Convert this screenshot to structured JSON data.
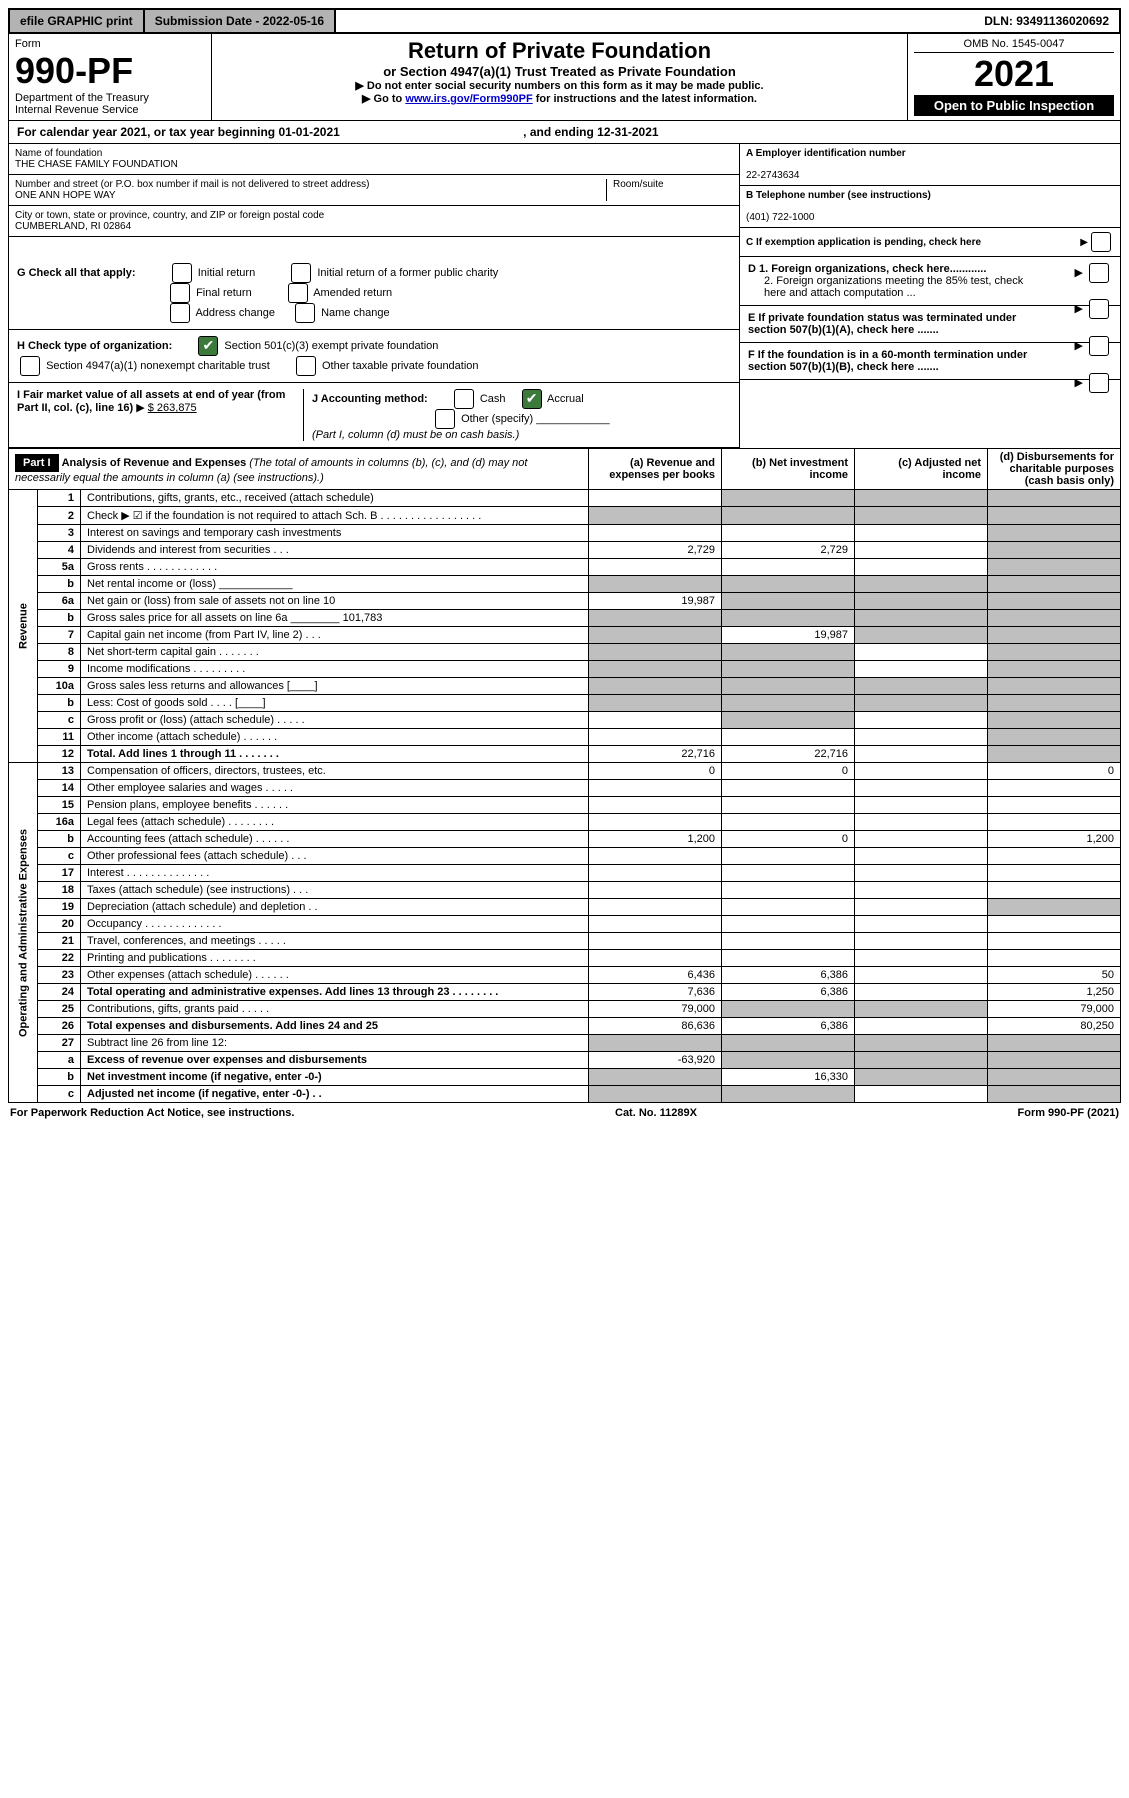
{
  "topbar": {
    "efile": "efile GRAPHIC print",
    "submission_label": "Submission Date - 2022-05-16",
    "dln": "DLN: 93491136020692"
  },
  "header": {
    "form_word": "Form",
    "form_no": "990-PF",
    "dept": "Department of the Treasury",
    "irs": "Internal Revenue Service",
    "title": "Return of Private Foundation",
    "subtitle": "or Section 4947(a)(1) Trust Treated as Private Foundation",
    "note1": "Do not enter social security numbers on this form as it may be made public.",
    "note2_pre": "Go to ",
    "note2_link": "www.irs.gov/Form990PF",
    "note2_post": " for instructions and the latest information.",
    "omb": "OMB No. 1545-0047",
    "year": "2021",
    "open": "Open to Public Inspection"
  },
  "cal": {
    "text": "For calendar year 2021, or tax year beginning 01-01-2021",
    "ending": ", and ending 12-31-2021"
  },
  "id": {
    "name_label": "Name of foundation",
    "name": "THE CHASE FAMILY FOUNDATION",
    "a_label": "A Employer identification number",
    "ein": "22-2743634",
    "addr_label": "Number and street (or P.O. box number if mail is not delivered to street address)",
    "room_label": "Room/suite",
    "addr": "ONE ANN HOPE WAY",
    "b_label": "B Telephone number (see instructions)",
    "phone": "(401) 722-1000",
    "city_label": "City or town, state or province, country, and ZIP or foreign postal code",
    "city": "CUMBERLAND, RI  02864",
    "c_label": "C If exemption application is pending, check here"
  },
  "boxes": {
    "g_label": "G Check all that apply:",
    "g_items": [
      "Initial return",
      "Initial return of a former public charity",
      "Final return",
      "Amended return",
      "Address change",
      "Name change"
    ],
    "h_label": "H Check type of organization:",
    "h1": "Section 501(c)(3) exempt private foundation",
    "h2": "Section 4947(a)(1) nonexempt charitable trust",
    "h3": "Other taxable private foundation",
    "i_label": "I Fair market value of all assets at end of year (from Part II, col. (c), line 16)",
    "i_value": "$  263,875",
    "j_label": "J Accounting method:",
    "j_cash": "Cash",
    "j_accrual": "Accrual",
    "j_other": "Other (specify)",
    "j_note": "(Part I, column (d) must be on cash basis.)",
    "d1": "D 1. Foreign organizations, check here............",
    "d2": "2. Foreign organizations meeting the 85% test, check here and attach computation ...",
    "e": "E  If private foundation status was terminated under section 507(b)(1)(A), check here .......",
    "f": "F  If the foundation is in a 60-month termination under section 507(b)(1)(B), check here ......."
  },
  "part1": {
    "label": "Part I",
    "title": "Analysis of Revenue and Expenses",
    "title_note": " (The total of amounts in columns (b), (c), and (d) may not necessarily equal the amounts in column (a) (see instructions).)",
    "cols": {
      "a": "(a) Revenue and expenses per books",
      "b": "(b) Net investment income",
      "c": "(c) Adjusted net income",
      "d": "(d) Disbursements for charitable purposes (cash basis only)"
    }
  },
  "sections": {
    "revenue": "Revenue",
    "operating": "Operating and Administrative Expenses"
  },
  "rows": [
    {
      "n": "1",
      "d": "Contributions, gifts, grants, etc., received (attach schedule)",
      "a": "",
      "b": "",
      "c": "",
      "dd": "",
      "ash": false,
      "bsh": true,
      "csh": true,
      "dsh": true
    },
    {
      "n": "2",
      "d": "Check ▶ ☑ if the foundation is not required to attach Sch. B   . . . . . . . . . . . . . . . . .",
      "a": "",
      "b": "",
      "c": "",
      "dd": "",
      "ash": true,
      "bsh": true,
      "csh": true,
      "dsh": true
    },
    {
      "n": "3",
      "d": "Interest on savings and temporary cash investments",
      "a": "",
      "b": "",
      "c": "",
      "dd": "",
      "ash": false,
      "bsh": false,
      "csh": false,
      "dsh": true
    },
    {
      "n": "4",
      "d": "Dividends and interest from securities   . . .",
      "a": "2,729",
      "b": "2,729",
      "c": "",
      "dd": "",
      "ash": false,
      "bsh": false,
      "csh": false,
      "dsh": true
    },
    {
      "n": "5a",
      "d": "Gross rents   . . . . . . . . . . . .",
      "a": "",
      "b": "",
      "c": "",
      "dd": "",
      "ash": false,
      "bsh": false,
      "csh": false,
      "dsh": true
    },
    {
      "n": "b",
      "d": "Net rental income or (loss)  ____________",
      "a": "",
      "b": "",
      "c": "",
      "dd": "",
      "ash": true,
      "bsh": true,
      "csh": true,
      "dsh": true
    },
    {
      "n": "6a",
      "d": "Net gain or (loss) from sale of assets not on line 10",
      "a": "19,987",
      "b": "",
      "c": "",
      "dd": "",
      "ash": false,
      "bsh": true,
      "csh": true,
      "dsh": true
    },
    {
      "n": "b",
      "d": "Gross sales price for all assets on line 6a ________ 101,783",
      "a": "",
      "b": "",
      "c": "",
      "dd": "",
      "ash": true,
      "bsh": true,
      "csh": true,
      "dsh": true
    },
    {
      "n": "7",
      "d": "Capital gain net income (from Part IV, line 2)   . . .",
      "a": "",
      "b": "19,987",
      "c": "",
      "dd": "",
      "ash": true,
      "bsh": false,
      "csh": true,
      "dsh": true
    },
    {
      "n": "8",
      "d": "Net short-term capital gain   . . . . . . .",
      "a": "",
      "b": "",
      "c": "",
      "dd": "",
      "ash": true,
      "bsh": true,
      "csh": false,
      "dsh": true
    },
    {
      "n": "9",
      "d": "Income modifications   . . . . . . . . .",
      "a": "",
      "b": "",
      "c": "",
      "dd": "",
      "ash": true,
      "bsh": true,
      "csh": false,
      "dsh": true
    },
    {
      "n": "10a",
      "d": "Gross sales less returns and allowances  [____]",
      "a": "",
      "b": "",
      "c": "",
      "dd": "",
      "ash": true,
      "bsh": true,
      "csh": true,
      "dsh": true
    },
    {
      "n": "b",
      "d": "Less: Cost of goods sold   . . . .  [____]",
      "a": "",
      "b": "",
      "c": "",
      "dd": "",
      "ash": true,
      "bsh": true,
      "csh": true,
      "dsh": true
    },
    {
      "n": "c",
      "d": "Gross profit or (loss) (attach schedule)   . . . . .",
      "a": "",
      "b": "",
      "c": "",
      "dd": "",
      "ash": false,
      "bsh": true,
      "csh": false,
      "dsh": true
    },
    {
      "n": "11",
      "d": "Other income (attach schedule)   . . . . . .",
      "a": "",
      "b": "",
      "c": "",
      "dd": "",
      "ash": false,
      "bsh": false,
      "csh": false,
      "dsh": true
    },
    {
      "n": "12",
      "d": "Total. Add lines 1 through 11   . . . . . . .",
      "a": "22,716",
      "b": "22,716",
      "c": "",
      "dd": "",
      "ash": false,
      "bsh": false,
      "csh": false,
      "dsh": true,
      "bold": true
    },
    {
      "n": "13",
      "d": "Compensation of officers, directors, trustees, etc.",
      "a": "0",
      "b": "0",
      "c": "",
      "dd": "0",
      "ash": false,
      "bsh": false,
      "csh": false,
      "dsh": false
    },
    {
      "n": "14",
      "d": "Other employee salaries and wages   . . . . .",
      "a": "",
      "b": "",
      "c": "",
      "dd": "",
      "ash": false,
      "bsh": false,
      "csh": false,
      "dsh": false
    },
    {
      "n": "15",
      "d": "Pension plans, employee benefits   . . . . . .",
      "a": "",
      "b": "",
      "c": "",
      "dd": "",
      "ash": false,
      "bsh": false,
      "csh": false,
      "dsh": false
    },
    {
      "n": "16a",
      "d": "Legal fees (attach schedule)   . . . . . . . .",
      "a": "",
      "b": "",
      "c": "",
      "dd": "",
      "ash": false,
      "bsh": false,
      "csh": false,
      "dsh": false
    },
    {
      "n": "b",
      "d": "Accounting fees (attach schedule)   . . . . . .",
      "a": "1,200",
      "b": "0",
      "c": "",
      "dd": "1,200",
      "ash": false,
      "bsh": false,
      "csh": false,
      "dsh": false
    },
    {
      "n": "c",
      "d": "Other professional fees (attach schedule)   . . .",
      "a": "",
      "b": "",
      "c": "",
      "dd": "",
      "ash": false,
      "bsh": false,
      "csh": false,
      "dsh": false
    },
    {
      "n": "17",
      "d": "Interest   . . . . . . . . . . . . . .",
      "a": "",
      "b": "",
      "c": "",
      "dd": "",
      "ash": false,
      "bsh": false,
      "csh": false,
      "dsh": false
    },
    {
      "n": "18",
      "d": "Taxes (attach schedule) (see instructions)   . . .",
      "a": "",
      "b": "",
      "c": "",
      "dd": "",
      "ash": false,
      "bsh": false,
      "csh": false,
      "dsh": false
    },
    {
      "n": "19",
      "d": "Depreciation (attach schedule) and depletion   . .",
      "a": "",
      "b": "",
      "c": "",
      "dd": "",
      "ash": false,
      "bsh": false,
      "csh": false,
      "dsh": true
    },
    {
      "n": "20",
      "d": "Occupancy   . . . . . . . . . . . . .",
      "a": "",
      "b": "",
      "c": "",
      "dd": "",
      "ash": false,
      "bsh": false,
      "csh": false,
      "dsh": false
    },
    {
      "n": "21",
      "d": "Travel, conferences, and meetings   . . . . .",
      "a": "",
      "b": "",
      "c": "",
      "dd": "",
      "ash": false,
      "bsh": false,
      "csh": false,
      "dsh": false
    },
    {
      "n": "22",
      "d": "Printing and publications   . . . . . . . .",
      "a": "",
      "b": "",
      "c": "",
      "dd": "",
      "ash": false,
      "bsh": false,
      "csh": false,
      "dsh": false
    },
    {
      "n": "23",
      "d": "Other expenses (attach schedule)   . . . . . .",
      "a": "6,436",
      "b": "6,386",
      "c": "",
      "dd": "50",
      "ash": false,
      "bsh": false,
      "csh": false,
      "dsh": false
    },
    {
      "n": "24",
      "d": "Total operating and administrative expenses. Add lines 13 through 23   . . . . . . . .",
      "a": "7,636",
      "b": "6,386",
      "c": "",
      "dd": "1,250",
      "ash": false,
      "bsh": false,
      "csh": false,
      "dsh": false,
      "bold": true
    },
    {
      "n": "25",
      "d": "Contributions, gifts, grants paid   . . . . .",
      "a": "79,000",
      "b": "",
      "c": "",
      "dd": "79,000",
      "ash": false,
      "bsh": true,
      "csh": true,
      "dsh": false
    },
    {
      "n": "26",
      "d": "Total expenses and disbursements. Add lines 24 and 25",
      "a": "86,636",
      "b": "6,386",
      "c": "",
      "dd": "80,250",
      "ash": false,
      "bsh": false,
      "csh": false,
      "dsh": false,
      "bold": true
    },
    {
      "n": "27",
      "d": "Subtract line 26 from line 12:",
      "a": "",
      "b": "",
      "c": "",
      "dd": "",
      "ash": true,
      "bsh": true,
      "csh": true,
      "dsh": true
    },
    {
      "n": "a",
      "d": "Excess of revenue over expenses and disbursements",
      "a": "-63,920",
      "b": "",
      "c": "",
      "dd": "",
      "ash": false,
      "bsh": true,
      "csh": true,
      "dsh": true,
      "bold": true
    },
    {
      "n": "b",
      "d": "Net investment income (if negative, enter -0-)",
      "a": "",
      "b": "16,330",
      "c": "",
      "dd": "",
      "ash": true,
      "bsh": false,
      "csh": true,
      "dsh": true,
      "bold": true
    },
    {
      "n": "c",
      "d": "Adjusted net income (if negative, enter -0-)   . .",
      "a": "",
      "b": "",
      "c": "",
      "dd": "",
      "ash": true,
      "bsh": true,
      "csh": false,
      "dsh": true,
      "bold": true
    }
  ],
  "footer": {
    "left": "For Paperwork Reduction Act Notice, see instructions.",
    "mid": "Cat. No. 11289X",
    "right": "Form 990-PF (2021)"
  }
}
